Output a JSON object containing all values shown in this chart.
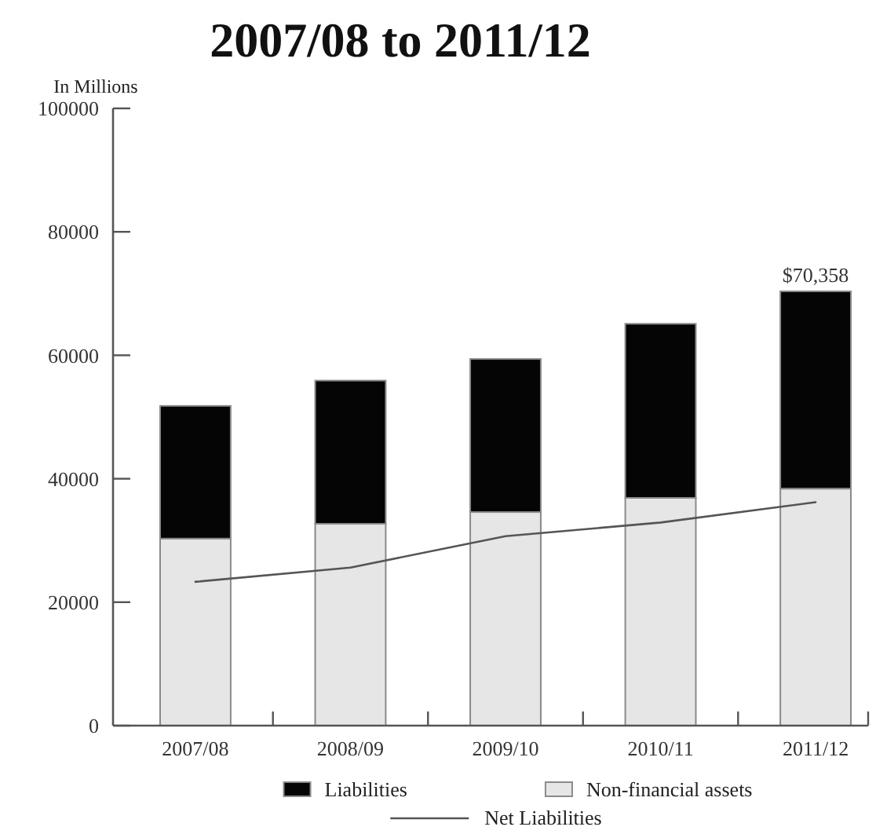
{
  "chart_data": {
    "type": "bar",
    "title": "2007/08 to 2011/12",
    "ylabel": "In Millions",
    "categories": [
      "2007/08",
      "2008/09",
      "2009/10",
      "2010/11",
      "2011/12"
    ],
    "stacked": true,
    "series": [
      {
        "name": "Non-financial assets",
        "color": "#e6e6e6",
        "values": [
          30300,
          32700,
          34600,
          36900,
          38400
        ]
      },
      {
        "name": "Liabilities",
        "color": "#050505",
        "values": [
          21500,
          23200,
          24800,
          28200,
          31958
        ]
      },
      {
        "name": "Net Liabilities",
        "type": "line",
        "color": "#555555",
        "values": [
          23300,
          25600,
          30700,
          32900,
          36200
        ]
      }
    ],
    "totals": [
      null,
      null,
      null,
      null,
      "$70,358"
    ],
    "ylim": [
      0,
      100000
    ],
    "yticks": [
      0,
      20000,
      40000,
      60000,
      80000,
      100000
    ],
    "legend": "bottom"
  }
}
